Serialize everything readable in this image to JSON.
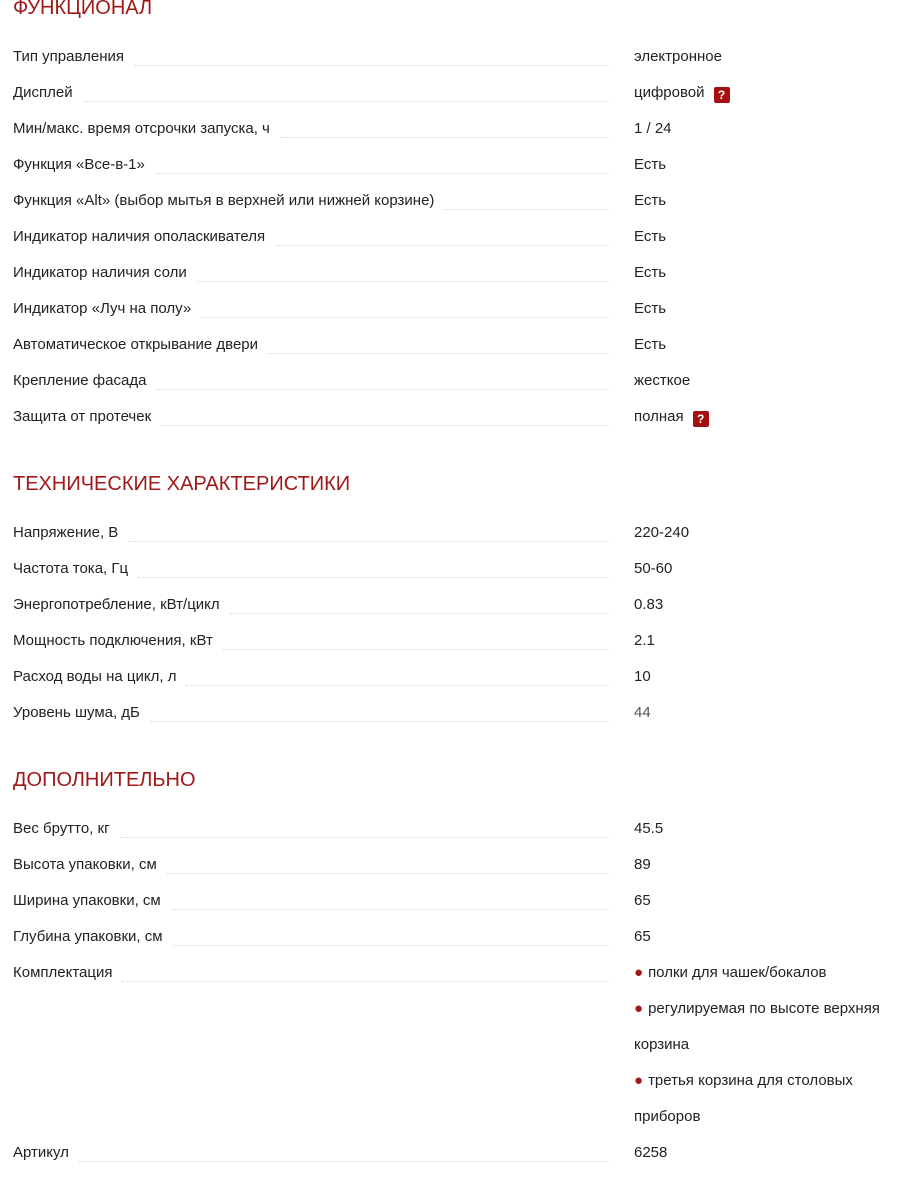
{
  "sections": [
    {
      "title": "ФУНКЦИОНАЛ",
      "rows": [
        {
          "label": "Тип управления",
          "value": "электронное"
        },
        {
          "label": "Дисплей",
          "value": "цифровой",
          "help": "?"
        },
        {
          "label": "Мин/макс. время отсрочки запуска, ч",
          "value": "1 / 24"
        },
        {
          "label": "Функция «Все-в-1»",
          "value": "Есть"
        },
        {
          "label": "Функция «Alt» (выбор мытья в верхней или нижней корзине)",
          "value": "Есть"
        },
        {
          "label": "Индикатор наличия ополаскивателя",
          "value": "Есть"
        },
        {
          "label": "Индикатор наличия соли",
          "value": "Есть"
        },
        {
          "label": "Индикатор «Луч на полу»",
          "value": "Есть"
        },
        {
          "label": "Автоматическое открывание двери",
          "value": "Есть"
        },
        {
          "label": "Крепление фасада",
          "value": "жесткое"
        },
        {
          "label": "Защита от протечек",
          "value": "полная",
          "help": "?"
        }
      ]
    },
    {
      "title": "ТЕХНИЧЕСКИЕ ХАРАКТЕРИСТИКИ",
      "rows": [
        {
          "label": "Напряжение, В",
          "value": "220-240"
        },
        {
          "label": "Частота тока, Гц",
          "value": "50-60"
        },
        {
          "label": "Энергопотребление, кВт/цикл",
          "value": "0.83"
        },
        {
          "label": "Мощность подключения, кВт",
          "value": "2.1"
        },
        {
          "label": "Расход воды на цикл, л",
          "value": "10"
        },
        {
          "label": "Уровень шума, дБ",
          "value": "44"
        }
      ]
    },
    {
      "title": "ДОПОЛНИТЕЛЬНО",
      "rows": [
        {
          "label": "Вес брутто, кг",
          "value": "45.5"
        },
        {
          "label": "Высота упаковки, см",
          "value": "89"
        },
        {
          "label": "Ширина упаковки, см",
          "value": "65"
        },
        {
          "label": "Глубина упаковки, см",
          "value": "65"
        },
        {
          "label": "Комплектация",
          "list": [
            "полки для чашек/бокалов",
            "регулируемая по высоте верхняя корзина",
            "третья корзина для столовых приборов"
          ]
        },
        {
          "label": "Артикул",
          "value": "6258"
        }
      ]
    }
  ],
  "bullet_glyph": "●",
  "colors": {
    "heading": "#a01818",
    "help_badge": "#a50f0f"
  }
}
